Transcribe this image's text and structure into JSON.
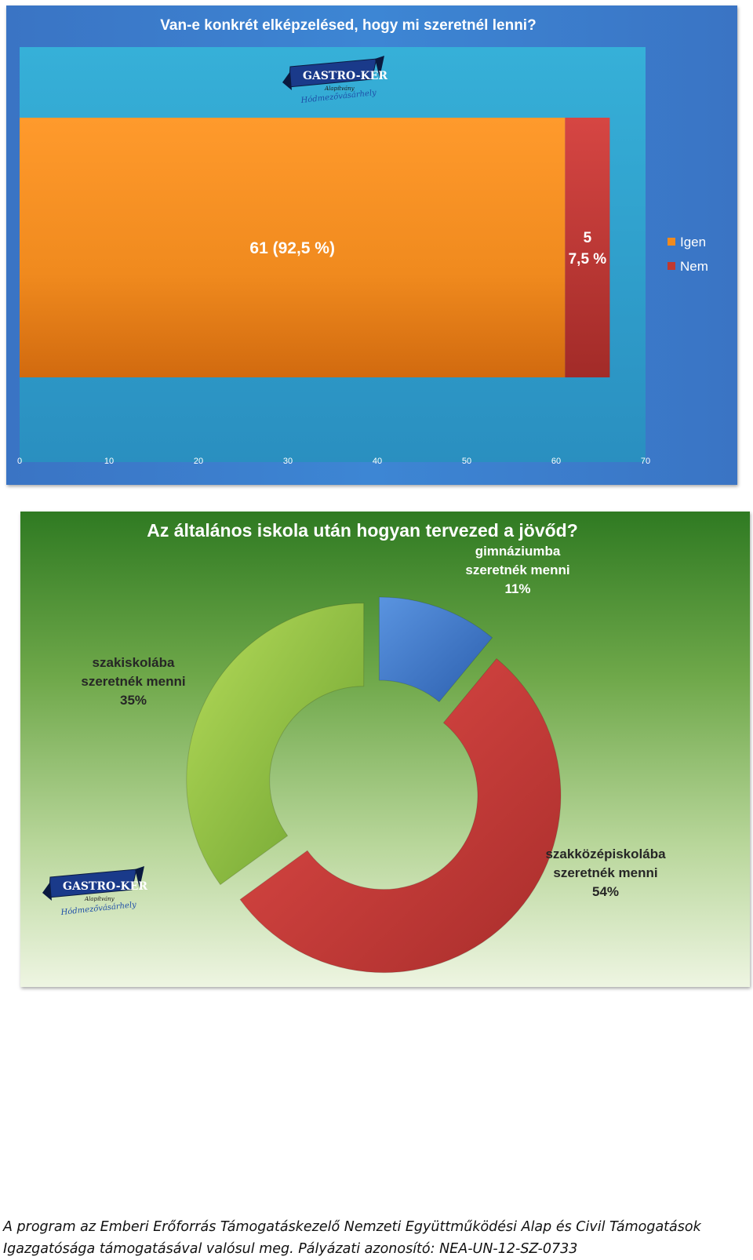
{
  "chart_data": [
    {
      "type": "bar",
      "orientation": "horizontal",
      "stacked": true,
      "title": "Van-e konkrét elképzelésed, hogy mi szeretnél lenni?",
      "series": [
        {
          "name": "Igen",
          "values": [
            61
          ],
          "label": "61 (92,5 %)",
          "color": "#f08a1e"
        },
        {
          "name": "Nem",
          "values": [
            5
          ],
          "label_line1": "5",
          "label_line2": "7,5 %",
          "color": "#c0392f"
        }
      ],
      "xlim": [
        0,
        70
      ],
      "xticks": [
        "0",
        "10",
        "20",
        "30",
        "40",
        "50",
        "60",
        "70"
      ],
      "legend": "right",
      "grid": false
    },
    {
      "type": "pie",
      "variant": "donut",
      "title": "Az általános iskola után hogyan tervezed a jövőd?",
      "slices": [
        {
          "label_lines": [
            "gimnáziumba",
            "szeretnék menni",
            "11%"
          ],
          "value": 11,
          "color": "#3c78c8"
        },
        {
          "label_lines": [
            "szakközépiskolába",
            "szeretnék menni",
            "54%"
          ],
          "value": 54,
          "color": "#c9393a"
        },
        {
          "label_lines": [
            "szakiskolába",
            "szeretnék menni",
            "35%"
          ],
          "value": 35,
          "color": "#8dc63f"
        }
      ]
    }
  ],
  "logo": {
    "name": "GASTRO-KER",
    "sub": "Alapítvány",
    "city": "Hódmezővásárhely"
  },
  "footer": {
    "line1": "A program az Emberi Erőforrás Támogatáskezelő Nemzeti Együttműködési Alap és Civil Támogatások",
    "line2": "Igazgatósága támogatásával valósul meg. Pályázati azonosító: NEA-UN-12-SZ-0733"
  }
}
